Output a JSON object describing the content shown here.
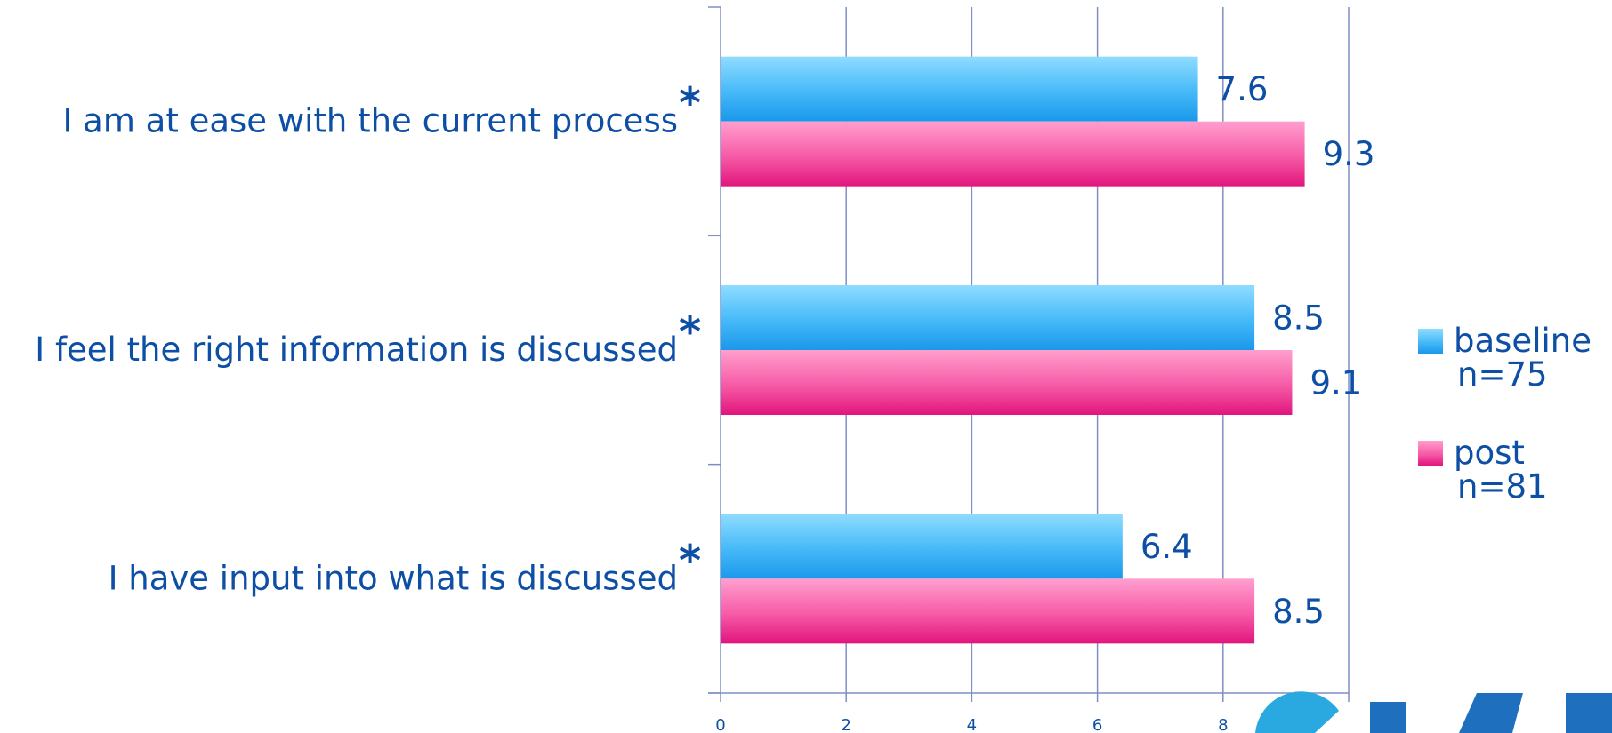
{
  "chart_data": {
    "type": "bar",
    "orientation": "horizontal",
    "categories": [
      "I am at ease with the current process",
      "I feel the right information is discussed",
      "I have input into what is discussed"
    ],
    "category_marker": "*",
    "series": [
      {
        "name": "baseline",
        "name_line2": "n=75",
        "values": [
          7.6,
          8.5,
          6.4
        ],
        "color": "#27aaf2"
      },
      {
        "name": "post",
        "name_line2": "n=81",
        "values": [
          9.3,
          9.1,
          8.5
        ],
        "color": "#f0398f"
      }
    ],
    "xlim": [
      0,
      10
    ],
    "x_ticks": [
      "0",
      "2",
      "4",
      "6",
      "8"
    ],
    "grid": "vertical",
    "legend": "right",
    "text_color": "#0e4fa6",
    "axis_color": "#7f8fc4"
  },
  "logo": {
    "text": ""
  }
}
